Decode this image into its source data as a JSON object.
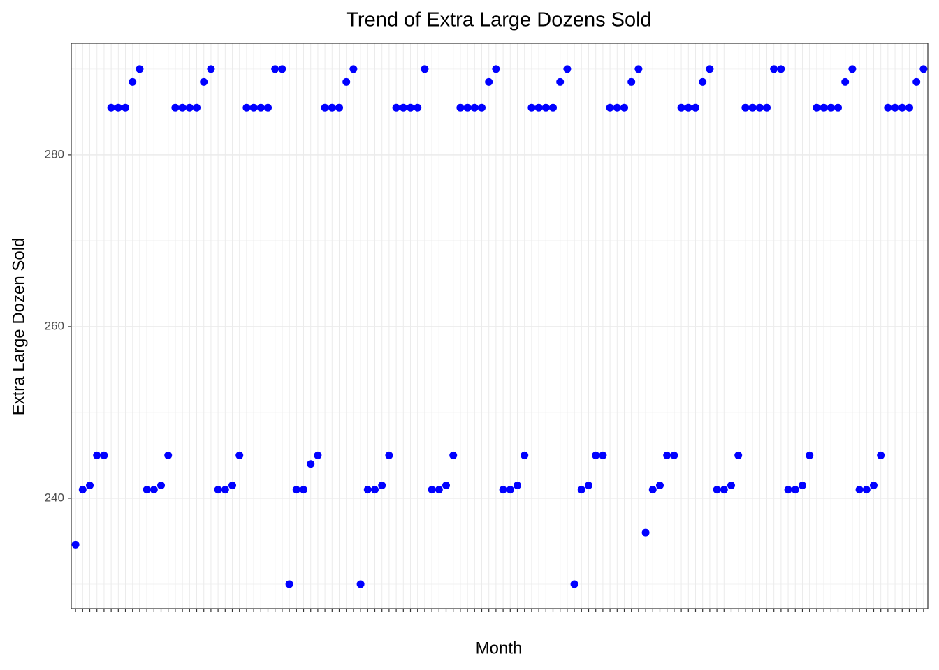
{
  "chart_data": {
    "type": "scatter",
    "title": "Trend of Extra Large Dozens Sold",
    "x_label": "Month",
    "y_label": "Extra Large Dozen Sold",
    "color": "#0000ff",
    "grid": true,
    "categories": [
      null,
      null,
      null,
      null,
      null,
      null,
      null,
      null,
      null,
      null,
      null,
      null,
      null,
      null,
      null,
      null,
      null,
      null,
      null,
      null,
      null,
      null,
      null,
      null,
      null,
      null,
      null,
      null,
      null,
      null,
      null,
      null,
      null,
      null,
      null,
      null,
      null,
      null,
      null,
      null,
      null,
      null,
      null,
      null,
      null,
      null,
      null,
      null,
      null,
      null,
      null,
      null,
      null,
      null,
      null,
      null,
      null,
      null,
      null,
      null,
      null,
      null,
      null,
      null,
      null,
      null,
      null,
      null,
      null,
      null,
      null,
      null,
      null,
      null,
      null,
      null,
      null,
      null,
      null,
      null,
      null,
      null,
      null,
      null,
      null,
      null,
      null,
      null,
      null,
      null,
      null,
      null,
      null,
      null,
      null,
      null,
      null,
      null,
      null,
      null,
      null,
      null,
      null,
      null,
      null,
      null,
      null,
      null,
      null,
      null,
      null,
      null,
      null,
      null,
      null,
      null,
      null,
      null,
      null,
      null
    ],
    "values": [
      234.6,
      241,
      241.5,
      245,
      245,
      285.5,
      285.5,
      285.5,
      288.5,
      290,
      241,
      241,
      241.5,
      245,
      285.5,
      285.5,
      285.5,
      285.5,
      288.5,
      290,
      241,
      241,
      241.5,
      245,
      285.5,
      285.5,
      285.5,
      285.5,
      290,
      290,
      230,
      241,
      241,
      244,
      245,
      285.5,
      285.5,
      285.5,
      288.5,
      290,
      230,
      241,
      241,
      241.5,
      245,
      285.5,
      285.5,
      285.5,
      285.5,
      290,
      241,
      241,
      241.5,
      245,
      285.5,
      285.5,
      285.5,
      285.5,
      288.5,
      290,
      241,
      241,
      241.5,
      245,
      285.5,
      285.5,
      285.5,
      285.5,
      288.5,
      290,
      230,
      241,
      241.5,
      245,
      245,
      285.5,
      285.5,
      285.5,
      288.5,
      290,
      236,
      241,
      241.5,
      245,
      245,
      285.5,
      285.5,
      285.5,
      288.5,
      290,
      241,
      241,
      241.5,
      245,
      285.5,
      285.5,
      285.5,
      285.5,
      290,
      290,
      241,
      241,
      241.5,
      245,
      285.5,
      285.5,
      285.5,
      285.5,
      288.5,
      290,
      241,
      241,
      241.5,
      245,
      285.5,
      285.5,
      285.5,
      285.5,
      288.5,
      290
    ],
    "ylim": [
      227.15,
      293
    ],
    "yticks": [
      240,
      260,
      280
    ]
  }
}
